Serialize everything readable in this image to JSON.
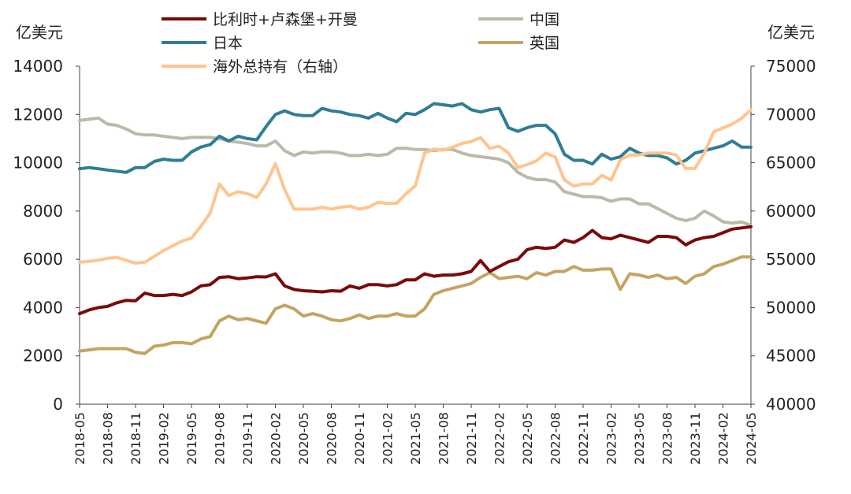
{
  "chart_data": {
    "type": "line",
    "y_left_unit": "亿美元",
    "y_right_unit": "亿美元",
    "ylim_left": [
      0,
      14000
    ],
    "ylim_right": [
      40000,
      75000
    ],
    "y_left_ticks": [
      "0",
      "2000",
      "4000",
      "6000",
      "8000",
      "10000",
      "12000",
      "14000"
    ],
    "y_right_ticks": [
      "40000",
      "45000",
      "50000",
      "55000",
      "60000",
      "65000",
      "70000",
      "75000"
    ],
    "grid": false,
    "legend_position": "top",
    "x": [
      "2018-05",
      "2018-06",
      "2018-07",
      "2018-08",
      "2018-09",
      "2018-10",
      "2018-11",
      "2018-12",
      "2019-01",
      "2019-02",
      "2019-03",
      "2019-04",
      "2019-05",
      "2019-06",
      "2019-07",
      "2019-08",
      "2019-09",
      "2019-10",
      "2019-11",
      "2019-12",
      "2020-01",
      "2020-02",
      "2020-03",
      "2020-04",
      "2020-05",
      "2020-06",
      "2020-07",
      "2020-08",
      "2020-09",
      "2020-10",
      "2020-11",
      "2020-12",
      "2021-01",
      "2021-02",
      "2021-03",
      "2021-04",
      "2021-05",
      "2021-06",
      "2021-07",
      "2021-08",
      "2021-09",
      "2021-10",
      "2021-11",
      "2021-12",
      "2022-01",
      "2022-02",
      "2022-03",
      "2022-04",
      "2022-05",
      "2022-06",
      "2022-07",
      "2022-08",
      "2022-09",
      "2022-10",
      "2022-11",
      "2022-12",
      "2023-01",
      "2023-02",
      "2023-03",
      "2023-04",
      "2023-05",
      "2023-06",
      "2023-07",
      "2023-08",
      "2023-09",
      "2023-10",
      "2023-11",
      "2023-12",
      "2024-01",
      "2024-02",
      "2024-03",
      "2024-04",
      "2024-05"
    ],
    "x_tick_labels": [
      "2018-05",
      "2018-08",
      "2018-11",
      "2019-02",
      "2019-05",
      "2019-08",
      "2019-11",
      "2020-02",
      "2020-05",
      "2020-08",
      "2020-11",
      "2021-02",
      "2021-05",
      "2021-08",
      "2021-11",
      "2022-02",
      "2022-05",
      "2022-08",
      "2022-11",
      "2023-02",
      "2023-05",
      "2023-08",
      "2023-11",
      "2024-02",
      "2024-05"
    ],
    "series": [
      {
        "name": "比利时+卢森堡+开曼",
        "axis": "left",
        "color": "#7a0a0a",
        "values": [
          3750,
          3900,
          4000,
          4050,
          4200,
          4300,
          4280,
          4600,
          4500,
          4500,
          4550,
          4500,
          4650,
          4900,
          4950,
          5250,
          5280,
          5200,
          5230,
          5280,
          5270,
          5400,
          4900,
          4750,
          4700,
          4680,
          4650,
          4700,
          4680,
          4900,
          4800,
          4950,
          4950,
          4900,
          4950,
          5150,
          5150,
          5400,
          5300,
          5350,
          5350,
          5400,
          5500,
          5950,
          5500,
          5700,
          5900,
          6000,
          6400,
          6500,
          6450,
          6500,
          6800,
          6700,
          6900,
          7200,
          6900,
          6850,
          7000,
          6900,
          6800,
          6700,
          6950,
          6950,
          6900,
          6600,
          6800,
          6900,
          6950,
          7100,
          7250,
          7300,
          7350
        ]
      },
      {
        "name": "中国",
        "axis": "left",
        "color": "#bdb9aa",
        "values": [
          11750,
          11800,
          11850,
          11600,
          11550,
          11400,
          11200,
          11150,
          11150,
          11100,
          11050,
          11000,
          11050,
          11050,
          11050,
          11000,
          10900,
          10850,
          10800,
          10700,
          10700,
          10900,
          10500,
          10300,
          10450,
          10400,
          10450,
          10450,
          10400,
          10300,
          10300,
          10350,
          10300,
          10350,
          10600,
          10600,
          10550,
          10550,
          10500,
          10550,
          10550,
          10400,
          10300,
          10250,
          10200,
          10150,
          10000,
          9600,
          9400,
          9300,
          9300,
          9200,
          8800,
          8700,
          8600,
          8600,
          8550,
          8400,
          8500,
          8500,
          8300,
          8300,
          8100,
          7900,
          7700,
          7600,
          7700,
          8000,
          7800,
          7550,
          7500,
          7550,
          7400
        ]
      },
      {
        "name": "日本",
        "axis": "left",
        "color": "#2f7d96",
        "values": [
          9750,
          9800,
          9750,
          9700,
          9650,
          9600,
          9800,
          9800,
          10050,
          10150,
          10100,
          10100,
          10450,
          10650,
          10750,
          11100,
          10900,
          11100,
          11000,
          10950,
          11500,
          12000,
          12150,
          12000,
          11950,
          11950,
          12250,
          12150,
          12100,
          12000,
          11950,
          11850,
          12050,
          11850,
          11700,
          12050,
          12000,
          12200,
          12450,
          12400,
          12350,
          12450,
          12200,
          12100,
          12200,
          12250,
          11450,
          11300,
          11450,
          11550,
          11550,
          11200,
          10350,
          10100,
          10100,
          9950,
          10350,
          10150,
          10250,
          10600,
          10400,
          10300,
          10300,
          10200,
          9950,
          10100,
          10400,
          10500,
          10600,
          10700,
          10900,
          10650,
          10650
        ]
      },
      {
        "name": "英国",
        "axis": "left",
        "color": "#c4a464",
        "values": [
          2200,
          2250,
          2300,
          2300,
          2300,
          2300,
          2150,
          2100,
          2400,
          2450,
          2550,
          2550,
          2500,
          2700,
          2800,
          3450,
          3650,
          3500,
          3550,
          3450,
          3350,
          3950,
          4100,
          3950,
          3650,
          3750,
          3650,
          3500,
          3450,
          3550,
          3700,
          3550,
          3650,
          3650,
          3750,
          3650,
          3650,
          3950,
          4550,
          4700,
          4800,
          4900,
          5000,
          5250,
          5450,
          5200,
          5250,
          5300,
          5200,
          5450,
          5350,
          5500,
          5500,
          5700,
          5550,
          5550,
          5600,
          5600,
          4750,
          5400,
          5350,
          5250,
          5350,
          5200,
          5250,
          5000,
          5300,
          5400,
          5700,
          5800,
          5950,
          6100,
          6100
        ]
      },
      {
        "name": "海外总持有（右轴）",
        "axis": "right",
        "color": "#ffc48f",
        "values": [
          54700,
          54800,
          54900,
          55100,
          55200,
          54900,
          54600,
          54700,
          55300,
          55900,
          56400,
          56900,
          57200,
          58400,
          59800,
          62800,
          61600,
          62000,
          61800,
          61400,
          62800,
          64900,
          62200,
          60200,
          60200,
          60200,
          60400,
          60200,
          60400,
          60500,
          60200,
          60400,
          60900,
          60800,
          60800,
          61800,
          62600,
          66000,
          66400,
          66300,
          66600,
          67000,
          67200,
          67600,
          66500,
          66700,
          66000,
          64500,
          64800,
          65200,
          66000,
          65600,
          63200,
          62600,
          62800,
          62800,
          63700,
          63200,
          65300,
          65800,
          65800,
          66000,
          66000,
          66000,
          65800,
          64400,
          64400,
          66000,
          68200,
          68600,
          69000,
          69600,
          70500
        ]
      }
    ]
  }
}
